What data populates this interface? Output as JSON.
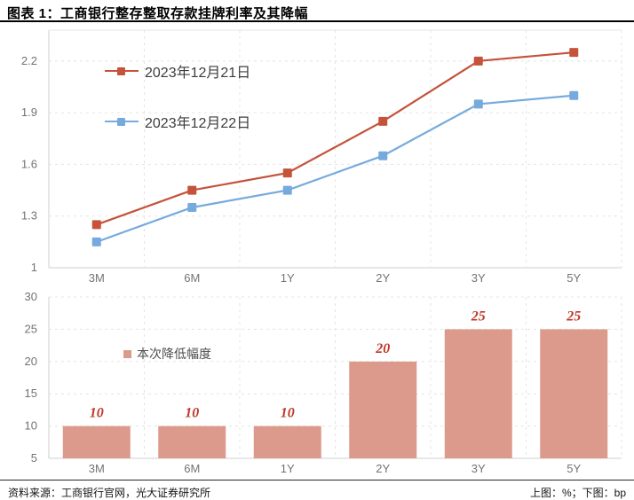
{
  "title": "图表 1：工商银行整存整取存款挂牌利率及其降幅",
  "footer": {
    "source": "资料来源：工商银行官网，光大证券研究所",
    "units": "上图：%；下图：bp"
  },
  "colors": {
    "grid": "#e4e4e4",
    "axis_line": "#cfcfcf",
    "tick_text": "#737373",
    "bar_fill": "#dc9a8c",
    "bar_label": "#c0392b"
  },
  "chart_data": [
    {
      "type": "line",
      "categories": [
        "3M",
        "6M",
        "1Y",
        "2Y",
        "3Y",
        "5Y"
      ],
      "series": [
        {
          "name": "2023年12月21日",
          "color": "#c5523a",
          "values": [
            1.25,
            1.45,
            1.55,
            1.85,
            2.2,
            2.25
          ]
        },
        {
          "name": "2023年12月22日",
          "color": "#76aadd",
          "values": [
            1.15,
            1.35,
            1.45,
            1.65,
            1.95,
            2.0
          ]
        }
      ],
      "ylim": [
        1,
        2.35
      ],
      "yticks": [
        1,
        1.3,
        1.6,
        1.9,
        2.2
      ],
      "ylabel": "",
      "xlabel": "",
      "unit": "%",
      "grid": true,
      "legend_position": "upper-left-inside",
      "marker": "square"
    },
    {
      "type": "bar",
      "categories": [
        "3M",
        "6M",
        "1Y",
        "2Y",
        "3Y",
        "5Y"
      ],
      "values": [
        10,
        10,
        10,
        20,
        25,
        25
      ],
      "data_labels": [
        "10",
        "10",
        "10",
        "20",
        "25",
        "25"
      ],
      "legend_label": "本次降低幅度",
      "ylim": [
        5,
        30
      ],
      "yticks": [
        5,
        10,
        15,
        20,
        25,
        30
      ],
      "ylabel": "",
      "xlabel": "",
      "unit": "bp",
      "grid": true,
      "bar_base": 5,
      "legend_position": "upper-left-inside"
    }
  ]
}
